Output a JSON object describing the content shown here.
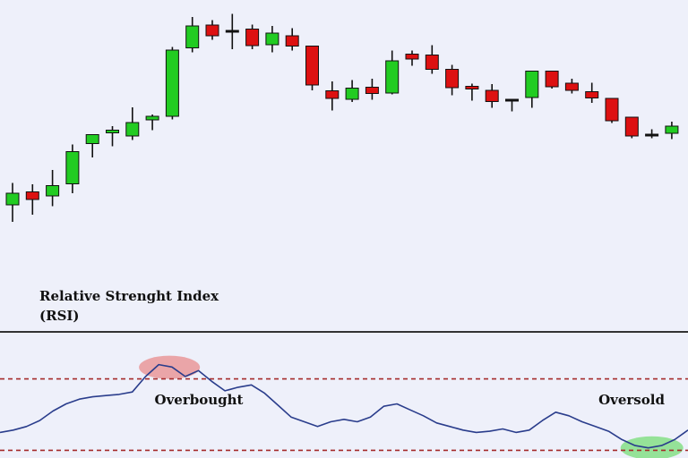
{
  "chart_data": [
    {
      "type": "candlestick",
      "series": [
        {
          "name": "",
          "candles": [
            {
              "o": 122,
              "h": 171,
              "l": 84,
              "c": 148
            },
            {
              "o": 151,
              "h": 168,
              "l": 100,
              "c": 134
            },
            {
              "o": 142,
              "h": 200,
              "l": 119,
              "c": 165
            },
            {
              "o": 169,
              "h": 257,
              "l": 148,
              "c": 241
            },
            {
              "o": 259,
              "h": 280,
              "l": 228,
              "c": 279
            },
            {
              "o": 283,
              "h": 298,
              "l": 253,
              "c": 289
            },
            {
              "o": 276,
              "h": 340,
              "l": 267,
              "c": 306
            },
            {
              "o": 312,
              "h": 324,
              "l": 289,
              "c": 320
            },
            {
              "o": 320,
              "h": 475,
              "l": 313,
              "c": 468
            },
            {
              "o": 473,
              "h": 542,
              "l": 463,
              "c": 522
            },
            {
              "o": 524,
              "h": 535,
              "l": 491,
              "c": 500
            },
            {
              "o": 512,
              "h": 549,
              "l": 470,
              "c": 512
            },
            {
              "o": 515,
              "h": 525,
              "l": 470,
              "c": 478
            },
            {
              "o": 480,
              "h": 522,
              "l": 463,
              "c": 506
            },
            {
              "o": 500,
              "h": 517,
              "l": 467,
              "c": 477
            },
            {
              "o": 477,
              "h": 477,
              "l": 378,
              "c": 390
            },
            {
              "o": 377,
              "h": 398,
              "l": 333,
              "c": 360
            },
            {
              "o": 358,
              "h": 401,
              "l": 352,
              "c": 383
            },
            {
              "o": 385,
              "h": 404,
              "l": 357,
              "c": 371
            },
            {
              "o": 372,
              "h": 467,
              "l": 369,
              "c": 444
            },
            {
              "o": 459,
              "h": 467,
              "l": 433,
              "c": 448
            },
            {
              "o": 457,
              "h": 479,
              "l": 415,
              "c": 425
            },
            {
              "o": 425,
              "h": 435,
              "l": 367,
              "c": 384
            },
            {
              "o": 387,
              "h": 393,
              "l": 355,
              "c": 381
            },
            {
              "o": 378,
              "h": 392,
              "l": 339,
              "c": 353
            },
            {
              "o": 355,
              "h": 359,
              "l": 331,
              "c": 358
            },
            {
              "o": 362,
              "h": 421,
              "l": 339,
              "c": 421
            },
            {
              "o": 421,
              "h": 421,
              "l": 382,
              "c": 386
            },
            {
              "o": 394,
              "h": 404,
              "l": 371,
              "c": 378
            },
            {
              "o": 375,
              "h": 395,
              "l": 350,
              "c": 361
            },
            {
              "o": 360,
              "h": 360,
              "l": 305,
              "c": 310
            },
            {
              "o": 318,
              "h": 318,
              "l": 271,
              "c": 276
            },
            {
              "o": 278,
              "h": 291,
              "l": 271,
              "c": 280
            },
            {
              "o": 282,
              "h": 308,
              "l": 269,
              "c": 298
            }
          ]
        }
      ],
      "colors": {
        "up": "#22cc22",
        "down": "#dd1111"
      }
    },
    {
      "type": "line",
      "title": "Relative Strenght Index\n(RSI)",
      "series": [
        {
          "name": "",
          "color": "#2a3d8c",
          "values": [
            35,
            37,
            40,
            45,
            53,
            59,
            63,
            65,
            66,
            67,
            69,
            82,
            92,
            90,
            82,
            87,
            78,
            70,
            73,
            75,
            68,
            58,
            48,
            44,
            40,
            44,
            46,
            44,
            48,
            57,
            59,
            54,
            49,
            43,
            40,
            37,
            35,
            36,
            38,
            35,
            37,
            45,
            52,
            49,
            44,
            40,
            36,
            29,
            24,
            22,
            24,
            29,
            37
          ]
        }
      ],
      "levels": [
        {
          "value": 80,
          "style": "dashed",
          "color": "#a52a2a"
        },
        {
          "value": 20,
          "style": "dashed",
          "color": "#a52a2a"
        }
      ],
      "annotations": [
        {
          "text": "Overbought",
          "at_index": 14,
          "color": "#e88c8c"
        },
        {
          "text": "Oversold",
          "at_index": 49,
          "color": "#77dd77"
        }
      ]
    }
  ]
}
